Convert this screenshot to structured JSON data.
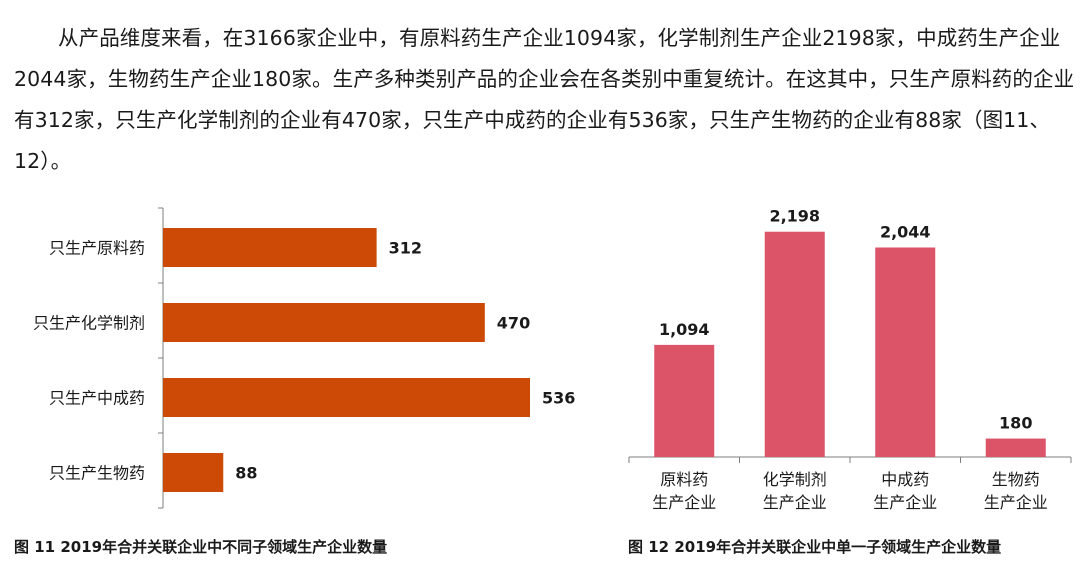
{
  "paragraph": "从产品维度来看，在3166家企业中，有原料药生产企业1094家，化学制剂生产企业2198家，中成药生产企业2044家，生物药生产企业180家。生产多种类别产品的企业会在各类别中重复统计。在这其中，只生产原料药的企业有312家，只生产化学制剂的企业有470家，只生产中成药的企业有536家，只生产生物药的企业有88家（图11、12）。",
  "captions": {
    "fig11": "图 11 2019年合并关联企业中不同子领域生产企业数量",
    "fig12": "图 12 2019年合并关联企业中单一子领域生产企业数量"
  },
  "chart_data": [
    {
      "type": "bar",
      "orientation": "horizontal",
      "categories": [
        "只生产原料药",
        "只生产化学制剂",
        "只生产中成药",
        "只生产生物药"
      ],
      "values": [
        312,
        470,
        536,
        88
      ],
      "value_labels": [
        "312",
        "470",
        "536",
        "88"
      ],
      "color": "#cc4a06",
      "xlim": [
        0,
        600
      ],
      "grid": false
    },
    {
      "type": "bar",
      "orientation": "vertical",
      "categories": [
        [
          "原料药",
          "生产企业"
        ],
        [
          "化学制剂",
          "生产企业"
        ],
        [
          "中成药",
          "生产企业"
        ],
        [
          "生物药",
          "生产企业"
        ]
      ],
      "values": [
        1094,
        2198,
        2044,
        180
      ],
      "value_labels": [
        "1,094",
        "2,198",
        "2,044",
        "180"
      ],
      "color": "#db5468",
      "ylim": [
        0,
        2400
      ],
      "grid": false
    }
  ]
}
